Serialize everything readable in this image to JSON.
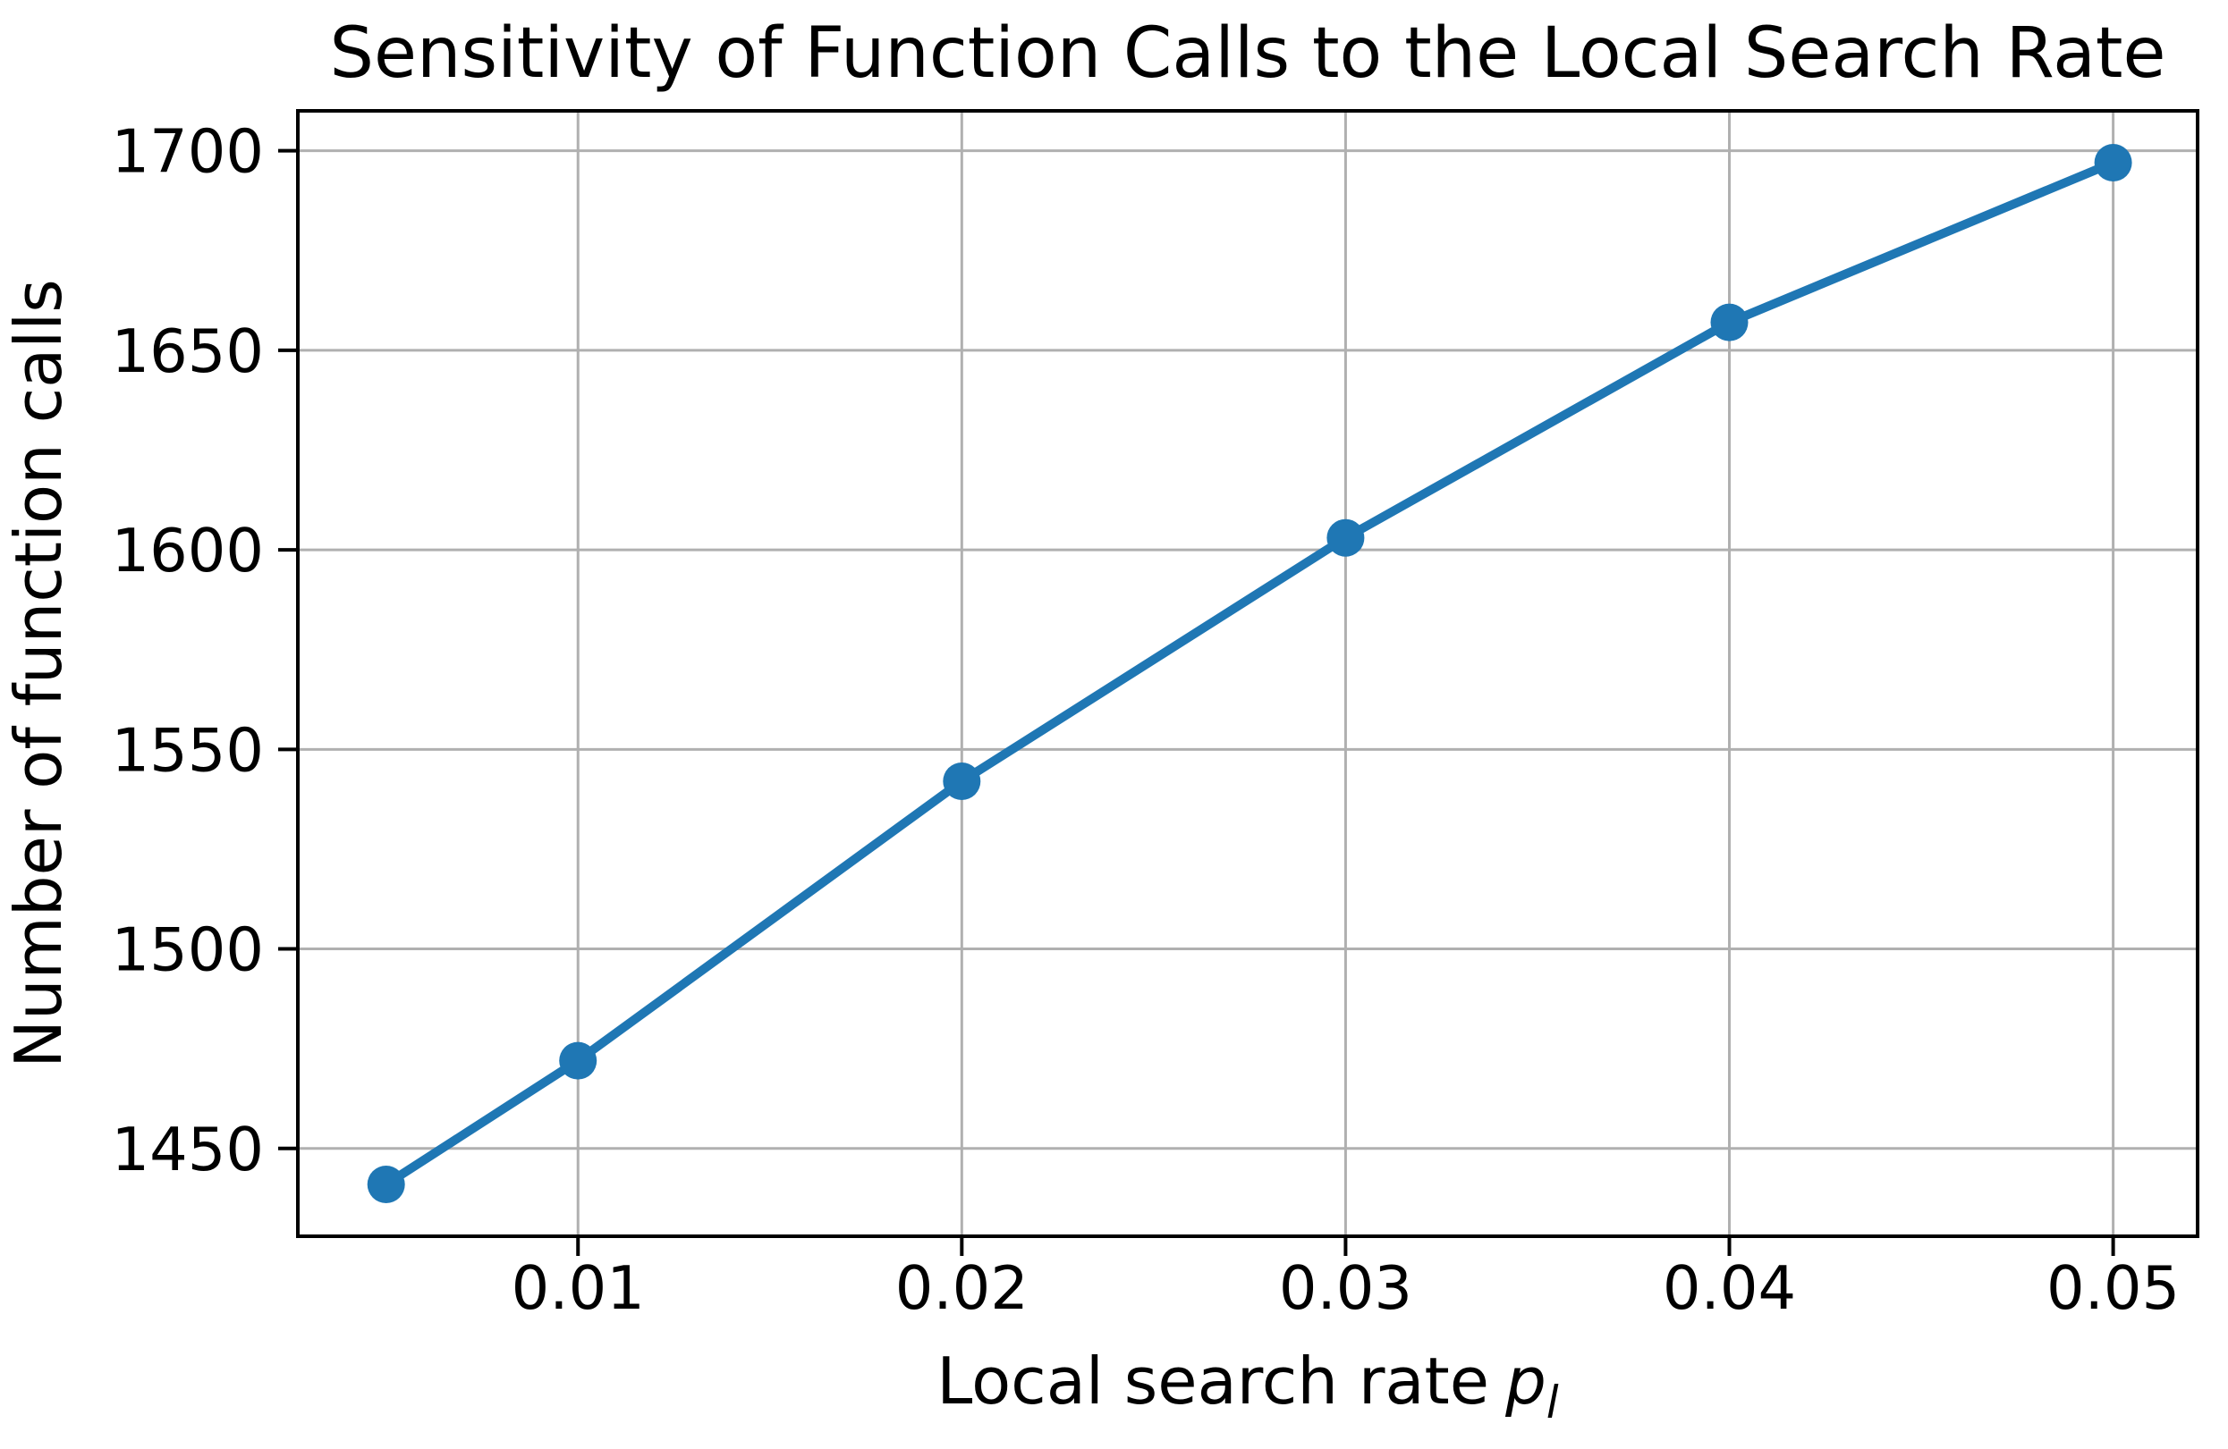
{
  "figure": {
    "background": "#ffffff"
  },
  "chart_data": {
    "type": "line",
    "title": "Sensitivity of Function Calls to the Local Search Rate",
    "xlabel": "Local search rate",
    "xlabel_var": "p",
    "xlabel_sub": "l",
    "ylabel": "Number of function calls",
    "x": [
      0.005,
      0.01,
      0.02,
      0.03,
      0.04,
      0.05
    ],
    "y": [
      1441,
      1472,
      1542,
      1603,
      1657,
      1697
    ],
    "x_ticks": [
      0.01,
      0.02,
      0.03,
      0.04,
      0.05
    ],
    "x_tick_labels": [
      "0.01",
      "0.02",
      "0.03",
      "0.04",
      "0.05"
    ],
    "y_ticks": [
      1450,
      1500,
      1550,
      1600,
      1650,
      1700
    ],
    "y_tick_labels": [
      "1450",
      "1500",
      "1550",
      "1600",
      "1650",
      "1700"
    ],
    "xlim": [
      0.0027,
      0.0522
    ],
    "ylim": [
      1428,
      1710
    ],
    "grid": true,
    "legend": "none",
    "marker": "o",
    "line_color": "#1f77b4",
    "marker_color": "#1f77b4",
    "grid_color": "#b0b0b0",
    "axis_color": "#000000",
    "text_color": "#000000"
  }
}
